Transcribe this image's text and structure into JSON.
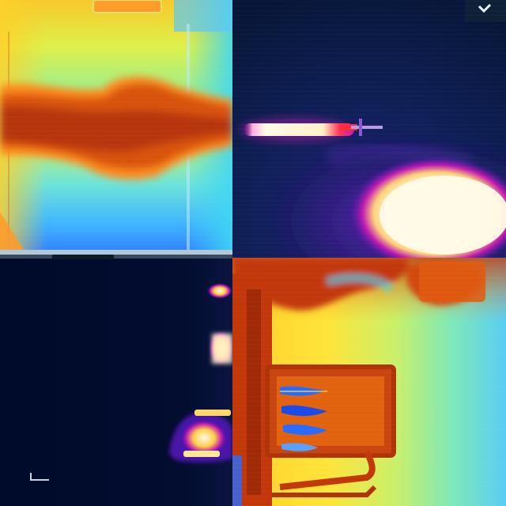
{
  "image": {
    "kind": "thermal-camera-mosaic",
    "panels": [
      {
        "id": "top-left",
        "palette": "rainbow",
        "subject": "hot-plume"
      },
      {
        "id": "top-right",
        "palette": "ironbow",
        "subject": "flame-jet-and-hot-spot"
      },
      {
        "id": "bottom-left",
        "palette": "ironbow",
        "subject": "dark-scene-with-hot-edges"
      },
      {
        "id": "bottom-right",
        "palette": "rainbow",
        "subject": "apparatus-with-cold-slots"
      }
    ],
    "colors": {
      "cold_deep": "#000a2a",
      "cold_blue": "#3a7bff",
      "cool_cyan": "#3fd6f2",
      "mid_green": "#a7f07a",
      "warm_yellow": "#ffe23a",
      "warm_orange": "#ff8a1e",
      "hot_red": "#c2380b",
      "ironbow_purple": "#5a16b5",
      "ironbow_magenta": "#c21bb0",
      "ironbow_white": "#fffbe8"
    }
  }
}
